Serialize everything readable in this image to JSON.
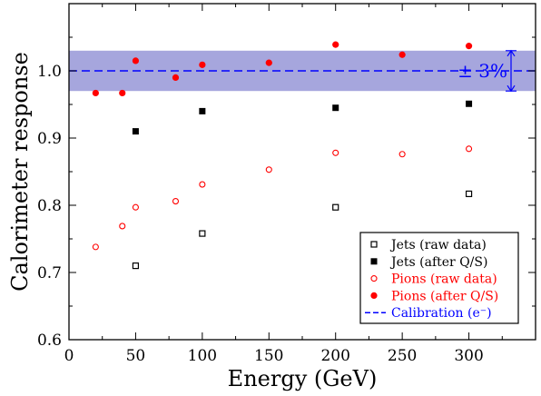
{
  "chart_data": {
    "type": "scatter",
    "xlabel": "Energy (GeV)",
    "ylabel": "Calorimeter response",
    "xlim": [
      0,
      350
    ],
    "ylim": [
      0.6,
      1.1
    ],
    "xticks": [
      0,
      50,
      100,
      150,
      200,
      250,
      300
    ],
    "yticks": [
      0.6,
      0.7,
      0.8,
      0.9,
      1.0
    ],
    "ytick_labels": [
      "0.6",
      "0.7",
      "0.8",
      "0.9",
      "1.0"
    ],
    "grid": false,
    "legend_position": "bottom-right",
    "series": [
      {
        "name": "Jets (raw data)",
        "marker": "open-square",
        "color": "#000000",
        "points": [
          [
            50,
            0.71
          ],
          [
            100,
            0.758
          ],
          [
            200,
            0.797
          ],
          [
            300,
            0.817
          ]
        ]
      },
      {
        "name": "Jets (after Q/S)",
        "marker": "filled-square",
        "color": "#000000",
        "points": [
          [
            50,
            0.91
          ],
          [
            100,
            0.94
          ],
          [
            200,
            0.945
          ],
          [
            300,
            0.951
          ]
        ]
      },
      {
        "name": "Pions (raw data)",
        "marker": "open-circle",
        "color": "#ff0000",
        "points": [
          [
            20,
            0.738
          ],
          [
            40,
            0.769
          ],
          [
            50,
            0.797
          ],
          [
            80,
            0.806
          ],
          [
            100,
            0.831
          ],
          [
            150,
            0.853
          ],
          [
            200,
            0.878
          ],
          [
            250,
            0.876
          ],
          [
            300,
            0.884
          ]
        ]
      },
      {
        "name": "Pions (after Q/S)",
        "marker": "filled-circle",
        "color": "#ff0000",
        "points": [
          [
            20,
            0.967
          ],
          [
            40,
            0.967
          ],
          [
            50,
            1.015
          ],
          [
            80,
            0.99
          ],
          [
            100,
            1.009
          ],
          [
            150,
            1.012
          ],
          [
            200,
            1.039
          ],
          [
            250,
            1.024
          ],
          [
            300,
            1.037
          ]
        ]
      }
    ],
    "reference_line": {
      "name": "Calibration (e⁻)",
      "y": 1.0,
      "style": "dashed",
      "color": "#0000ff"
    },
    "band": {
      "center": 1.0,
      "low": 0.97,
      "high": 1.03,
      "color": "#a6a6dd",
      "label": "± 3%"
    }
  }
}
